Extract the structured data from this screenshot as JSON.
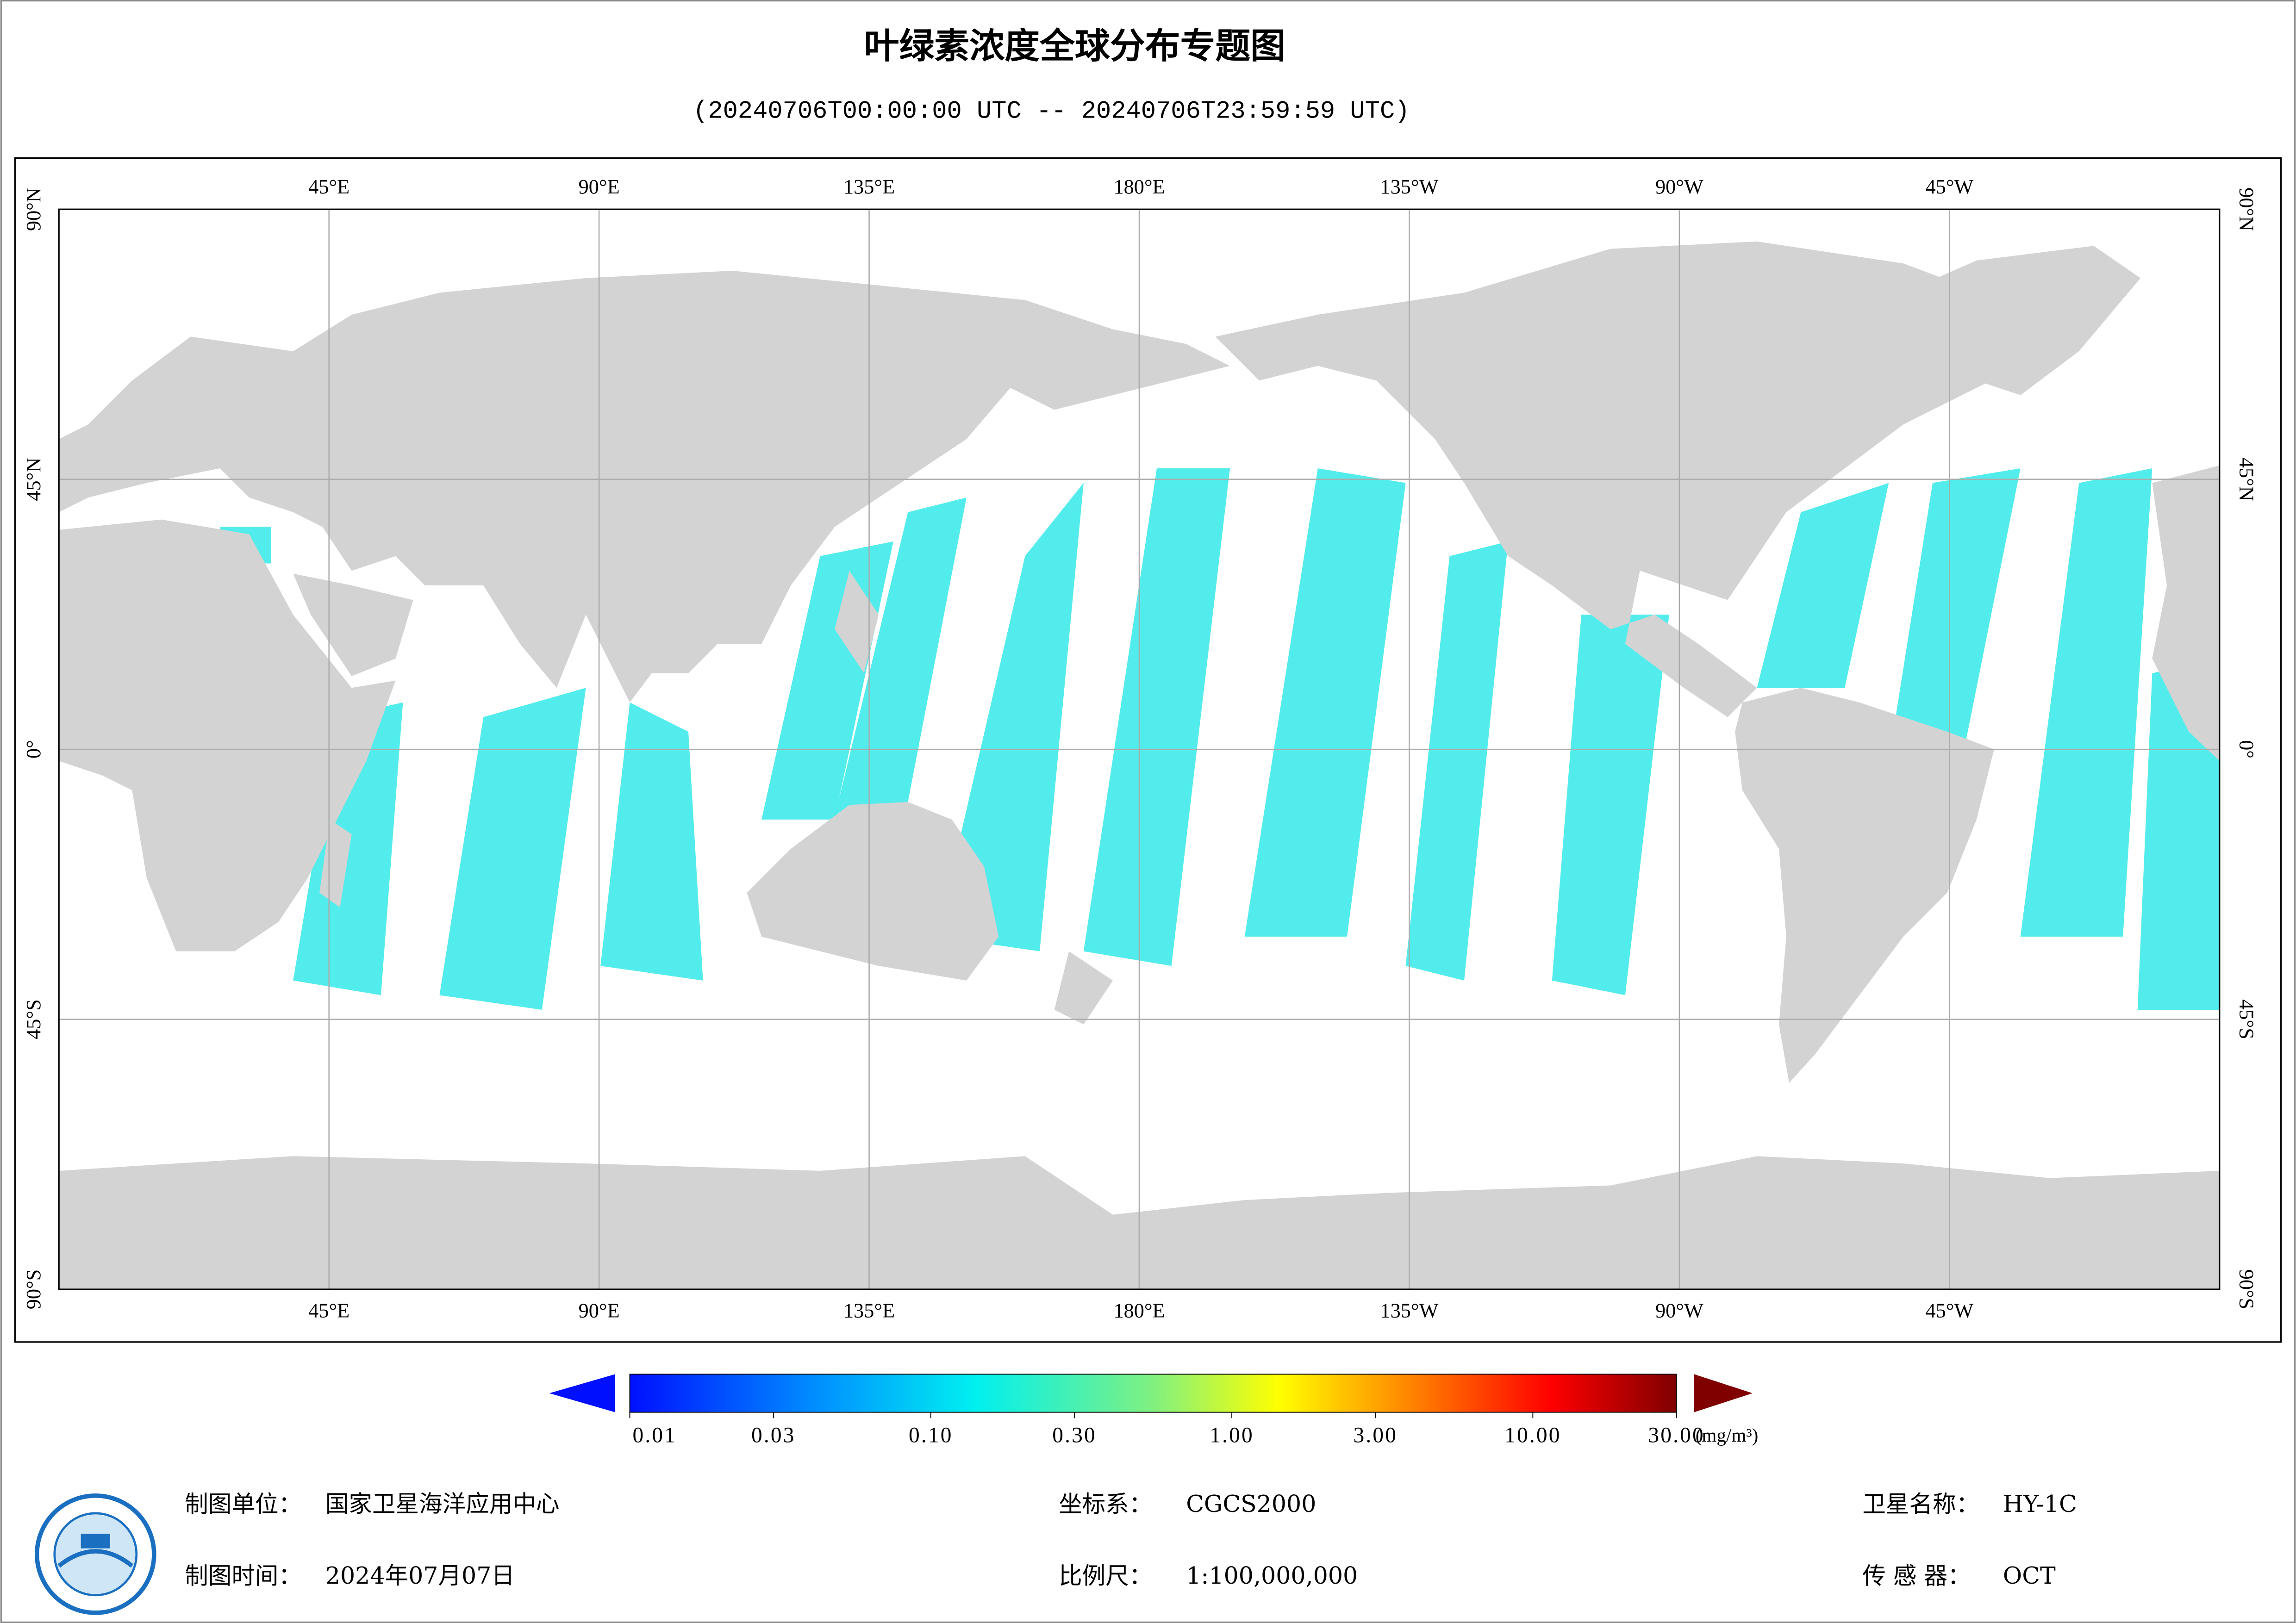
{
  "header": {
    "title": "叶绿素浓度全球分布专题图",
    "subtitle": "(20240706T00:00:00 UTC -- 20240706T23:59:59 UTC)"
  },
  "map": {
    "lonlim": [
      0,
      360
    ],
    "latlim": [
      -90,
      90
    ],
    "lon_ticks": [
      {
        "value": 45,
        "label": "45°E"
      },
      {
        "value": 90,
        "label": "90°E"
      },
      {
        "value": 135,
        "label": "135°E"
      },
      {
        "value": 180,
        "label": "180°E"
      },
      {
        "value": 225,
        "label": "135°W"
      },
      {
        "value": 270,
        "label": "90°W"
      },
      {
        "value": 315,
        "label": "45°W"
      }
    ],
    "lat_ticks": [
      {
        "value": 90,
        "label": "90°N"
      },
      {
        "value": 45,
        "label": "45°N"
      },
      {
        "value": 0,
        "label": "0°"
      },
      {
        "value": -45,
        "label": "45°S"
      },
      {
        "value": -90,
        "label": "90°S"
      }
    ],
    "grid": true
  },
  "colorbar": {
    "lim": [
      0.01,
      30
    ],
    "log": true,
    "ticks": [
      {
        "value": 0.01,
        "label": "0.01"
      },
      {
        "value": 0.03,
        "label": "0.03"
      },
      {
        "value": 0.1,
        "label": "0.10"
      },
      {
        "value": 0.3,
        "label": "0.30"
      },
      {
        "value": 1,
        "label": "1.00"
      },
      {
        "value": 3,
        "label": "3.00"
      },
      {
        "value": 10,
        "label": "10.00"
      },
      {
        "value": 30,
        "label": "30.00"
      }
    ],
    "unit": "(mg/m³)"
  },
  "footer": [
    {
      "label": "制图单位：",
      "value": "国家卫星海洋应用中心"
    },
    {
      "label": "坐标系：",
      "value": "CGCS2000"
    },
    {
      "label": "卫星名称：",
      "value": "HY-1C"
    },
    {
      "label": "制图时间：",
      "value": "2024年07月07日"
    },
    {
      "label": "比例尺：",
      "value": "1:100,000,000"
    },
    {
      "label": "传 感 器：",
      "value": "OCT"
    }
  ]
}
